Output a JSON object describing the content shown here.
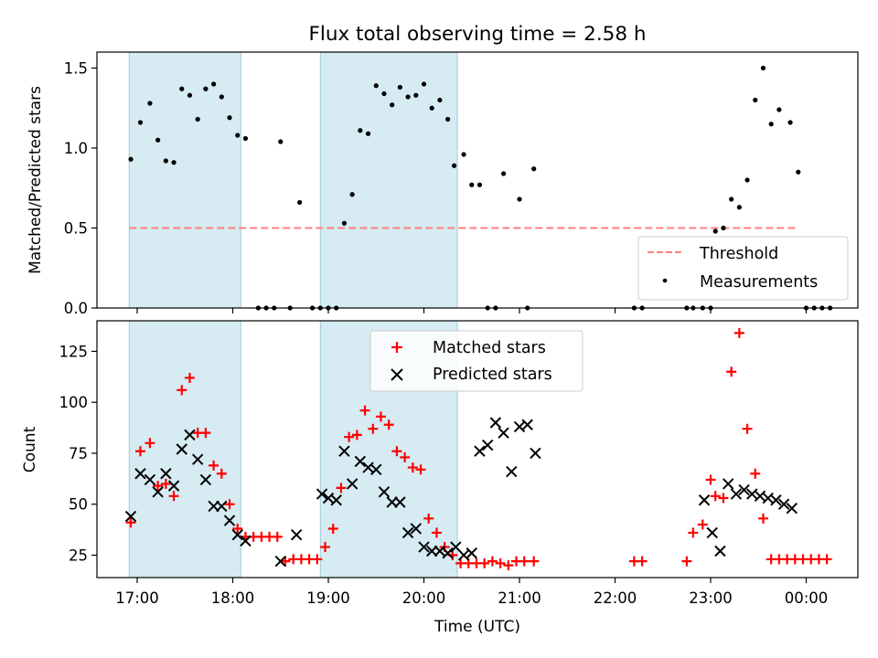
{
  "chart_data": [
    {
      "type": "scatter",
      "title": "Flux total observing time = 2.58 h",
      "xlabel": "",
      "ylabel": "Matched/Predicted stars",
      "ylim": [
        0,
        1.6
      ],
      "yticks": [
        "0.0",
        "0.5",
        "1.0",
        "1.5"
      ],
      "shaded_spans": [
        [
          "16:55",
          "18:05"
        ],
        [
          "18:55",
          "20:21"
        ]
      ],
      "series": [
        {
          "name": "Threshold",
          "kind": "dashed-line",
          "color": "#ff7f7f",
          "x": [
            "16:55",
            "23:55"
          ],
          "y": [
            0.5,
            0.5
          ]
        },
        {
          "name": "Measurements",
          "kind": "dots",
          "color": "#000000",
          "x": [
            "16:56",
            "17:02",
            "17:08",
            "17:13",
            "17:18",
            "17:23",
            "17:28",
            "17:33",
            "17:38",
            "17:43",
            "17:48",
            "17:53",
            "17:58",
            "18:03",
            "18:08",
            "18:16",
            "18:21",
            "18:26",
            "18:30",
            "18:36",
            "18:42",
            "18:50",
            "18:55",
            "19:00",
            "19:05",
            "19:10",
            "19:15",
            "19:20",
            "19:25",
            "19:30",
            "19:35",
            "19:40",
            "19:45",
            "19:50",
            "19:55",
            "20:00",
            "20:05",
            "20:10",
            "20:15",
            "20:19",
            "20:25",
            "20:30",
            "20:35",
            "20:40",
            "20:45",
            "20:50",
            "21:00",
            "21:05",
            "21:09",
            "22:12",
            "22:17",
            "22:45",
            "22:49",
            "22:55",
            "23:00",
            "23:03",
            "23:08",
            "23:13",
            "23:18",
            "23:23",
            "23:28",
            "23:33",
            "23:38",
            "23:43",
            "23:50",
            "23:55",
            "24:00",
            "24:05",
            "24:10",
            "24:15"
          ],
          "y": [
            0.93,
            1.16,
            1.28,
            1.05,
            0.92,
            0.91,
            1.37,
            1.33,
            1.18,
            1.37,
            1.4,
            1.32,
            1.19,
            1.08,
            1.06,
            0.0,
            0.0,
            0.0,
            1.04,
            0.0,
            0.66,
            0.0,
            0.0,
            0.0,
            0.0,
            0.53,
            0.71,
            1.11,
            1.09,
            1.39,
            1.34,
            1.27,
            1.38,
            1.32,
            1.33,
            1.4,
            1.25,
            1.3,
            1.18,
            0.89,
            0.96,
            0.77,
            0.77,
            0.0,
            0.0,
            0.84,
            0.68,
            0.0,
            0.87,
            0.0,
            0.0,
            0.0,
            0.0,
            0.0,
            0.0,
            0.48,
            0.5,
            0.68,
            0.63,
            0.8,
            1.3,
            1.5,
            1.15,
            1.24,
            1.16,
            0.85,
            0.0,
            0.0,
            0.0,
            0.0
          ]
        }
      ],
      "legend": {
        "placement": "lower-right",
        "entries": [
          "Threshold",
          "Measurements"
        ]
      }
    },
    {
      "type": "scatter",
      "title": "",
      "xlabel": "Time (UTC)",
      "ylabel": "Count",
      "xtick_labels": [
        "17:00",
        "18:00",
        "19:00",
        "20:00",
        "21:00",
        "22:00",
        "23:00",
        "00:00"
      ],
      "yticks": [
        "25",
        "50",
        "75",
        "100",
        "125"
      ],
      "ylim": [
        14,
        140
      ],
      "shaded_spans": [
        [
          "16:55",
          "18:05"
        ],
        [
          "18:55",
          "20:21"
        ]
      ],
      "series": [
        {
          "name": "Matched stars",
          "marker": "plus",
          "color": "#ff0000",
          "x": [
            "16:56",
            "17:02",
            "17:08",
            "17:13",
            "17:18",
            "17:23",
            "17:28",
            "17:33",
            "17:38",
            "17:43",
            "17:48",
            "17:53",
            "17:58",
            "18:03",
            "18:08",
            "18:13",
            "18:18",
            "18:23",
            "18:28",
            "18:33",
            "18:38",
            "18:43",
            "18:48",
            "18:53",
            "18:58",
            "19:03",
            "19:08",
            "19:13",
            "19:18",
            "19:23",
            "19:28",
            "19:33",
            "19:38",
            "19:43",
            "19:48",
            "19:53",
            "19:58",
            "20:03",
            "20:08",
            "20:13",
            "20:18",
            "20:23",
            "20:28",
            "20:33",
            "20:38",
            "20:43",
            "20:48",
            "20:53",
            "20:58",
            "21:03",
            "21:09",
            "22:12",
            "22:17",
            "22:45",
            "22:49",
            "22:55",
            "23:00",
            "23:03",
            "23:08",
            "23:13",
            "23:18",
            "23:23",
            "23:28",
            "23:33",
            "23:38",
            "23:43",
            "23:48",
            "23:53",
            "23:58",
            "24:03",
            "24:08",
            "24:13"
          ],
          "y": [
            41,
            76,
            80,
            59,
            60,
            54,
            106,
            112,
            85,
            85,
            69,
            65,
            50,
            38,
            34,
            34,
            34,
            34,
            34,
            22,
            23,
            23,
            23,
            23,
            29,
            38,
            58,
            83,
            84,
            96,
            87,
            93,
            89,
            76,
            73,
            68,
            67,
            43,
            36,
            29,
            25,
            21,
            21,
            21,
            21,
            22,
            21,
            20,
            22,
            22,
            22,
            22,
            22,
            22,
            36,
            40,
            62,
            54,
            53,
            115,
            134,
            87,
            65,
            43,
            23,
            23,
            23,
            23,
            23,
            23,
            23,
            23
          ]
        },
        {
          "name": "Predicted stars",
          "marker": "x",
          "color": "#000000",
          "x": [
            "16:56",
            "17:02",
            "17:08",
            "17:13",
            "17:18",
            "17:23",
            "17:28",
            "17:33",
            "17:38",
            "17:43",
            "17:48",
            "17:53",
            "17:58",
            "18:03",
            "18:08",
            "18:30",
            "18:40",
            "18:56",
            "19:00",
            "19:05",
            "19:10",
            "19:15",
            "19:20",
            "19:25",
            "19:30",
            "19:35",
            "19:40",
            "19:45",
            "19:50",
            "19:55",
            "20:00",
            "20:05",
            "20:10",
            "20:15",
            "20:20",
            "20:25",
            "20:30",
            "20:35",
            "20:40",
            "20:45",
            "20:50",
            "20:55",
            "21:00",
            "21:05",
            "21:10",
            "22:56",
            "23:01",
            "23:06",
            "23:11",
            "23:16",
            "23:21",
            "23:26",
            "23:31",
            "23:36",
            "23:41",
            "23:46",
            "23:51"
          ],
          "y": [
            44,
            65,
            62,
            56,
            65,
            59,
            77,
            84,
            72,
            62,
            49,
            49,
            42,
            35,
            32,
            22,
            35,
            55,
            53,
            52,
            76,
            60,
            71,
            68,
            67,
            56,
            51,
            51,
            36,
            38,
            29,
            27,
            27,
            26,
            29,
            25,
            26,
            76,
            79,
            90,
            85,
            66,
            88,
            89,
            75,
            52,
            36,
            27,
            60,
            55,
            57,
            55,
            54,
            53,
            52,
            50,
            48
          ]
        }
      ],
      "legend": {
        "placement": "upper-center",
        "entries": [
          "Matched stars",
          "Predicted stars"
        ]
      }
    }
  ]
}
